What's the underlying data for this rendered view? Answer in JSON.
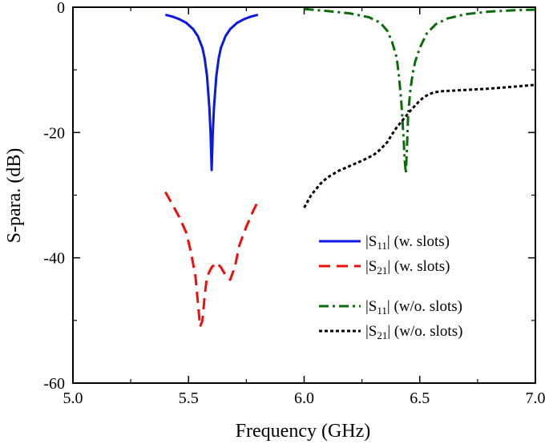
{
  "chart_data": {
    "type": "line",
    "title": "",
    "xlabel": "Frequency (GHz)",
    "ylabel": "S-para. (dB)",
    "xlim": [
      5.0,
      7.0
    ],
    "ylim": [
      -60,
      0
    ],
    "xticks": [
      5.0,
      5.5,
      6.0,
      6.5,
      7.0
    ],
    "xtick_labels": [
      "5.0",
      "5.5",
      "6.0",
      "6.5",
      "7.0"
    ],
    "yticks": [
      0,
      -20,
      -40,
      -60
    ],
    "ytick_labels": [
      "0",
      "-20",
      "-40",
      "-60"
    ],
    "grid": false,
    "legend_position": "bottom-right",
    "series": [
      {
        "name": "|S11| (w. slots)",
        "legend": {
          "prefix": "|S",
          "sub": "11",
          "suffix": "| (w. slots)"
        },
        "color": "#0a18e6",
        "dash": "solid",
        "x": [
          5.4,
          5.43,
          5.46,
          5.49,
          5.52,
          5.54,
          5.56,
          5.57,
          5.58,
          5.59,
          5.595,
          5.6,
          5.605,
          5.61,
          5.62,
          5.63,
          5.64,
          5.66,
          5.68,
          5.71,
          5.74,
          5.77,
          5.8
        ],
        "y": [
          -1.2,
          -1.5,
          -1.9,
          -2.5,
          -3.5,
          -4.6,
          -6.5,
          -8.2,
          -11.0,
          -16.0,
          -20.0,
          -26.0,
          -20.0,
          -16.0,
          -11.0,
          -8.2,
          -6.5,
          -4.6,
          -3.5,
          -2.5,
          -1.9,
          -1.5,
          -1.2
        ]
      },
      {
        "name": "|S21| (w. slots)",
        "legend": {
          "prefix": "|S",
          "sub": "21",
          "suffix": "| (w. slots)"
        },
        "color": "#f20d0d",
        "dash": "dashed",
        "x": [
          5.4,
          5.43,
          5.46,
          5.49,
          5.51,
          5.53,
          5.54,
          5.55,
          5.56,
          5.57,
          5.58,
          5.6,
          5.62,
          5.64,
          5.66,
          5.68,
          5.7,
          5.72,
          5.75,
          5.78,
          5.8
        ],
        "y": [
          -29.5,
          -31.5,
          -33.5,
          -36.0,
          -39.0,
          -43.0,
          -47.0,
          -51.0,
          -50.0,
          -46.0,
          -43.0,
          -41.5,
          -40.8,
          -41.5,
          -42.8,
          -43.5,
          -41.5,
          -38.0,
          -35.0,
          -32.5,
          -31.0
        ]
      },
      {
        "name": "|S11| (w/o. slots)",
        "legend": {
          "prefix": "|S",
          "sub": "11",
          "suffix": "| (w/o. slots)"
        },
        "color": "#0b6b0b",
        "dash": "dash-dot",
        "x": [
          6.0,
          6.1,
          6.2,
          6.28,
          6.33,
          6.36,
          6.38,
          6.4,
          6.41,
          6.42,
          6.43,
          6.435,
          6.44,
          6.445,
          6.45,
          6.46,
          6.47,
          6.48,
          6.5,
          6.53,
          6.57,
          6.62,
          6.7,
          6.8,
          6.9,
          7.0
        ],
        "y": [
          -0.3,
          -0.6,
          -1.0,
          -1.6,
          -2.5,
          -3.8,
          -5.5,
          -8.0,
          -11.0,
          -15.0,
          -21.0,
          -24.5,
          -26.5,
          -22.0,
          -17.0,
          -13.0,
          -10.5,
          -8.7,
          -6.5,
          -4.2,
          -2.7,
          -1.8,
          -1.1,
          -0.7,
          -0.5,
          -0.4
        ]
      },
      {
        "name": "|S21| (w/o. slots)",
        "legend": {
          "prefix": "|S",
          "sub": "21",
          "suffix": "| (w/o. slots)"
        },
        "color": "#000000",
        "dash": "dotted",
        "x": [
          6.0,
          6.03,
          6.07,
          6.1,
          6.15,
          6.2,
          6.25,
          6.3,
          6.33,
          6.36,
          6.38,
          6.4,
          6.42,
          6.44,
          6.46,
          6.48,
          6.5,
          6.52,
          6.54,
          6.56,
          6.6,
          6.65,
          6.7,
          6.8,
          6.9,
          7.0
        ],
        "y": [
          -32.0,
          -30.0,
          -28.2,
          -27.2,
          -26.1,
          -25.3,
          -24.5,
          -23.6,
          -22.7,
          -21.5,
          -20.3,
          -19.2,
          -18.3,
          -17.4,
          -16.5,
          -15.7,
          -14.9,
          -14.3,
          -13.9,
          -13.6,
          -13.4,
          -13.3,
          -13.2,
          -13.0,
          -12.7,
          -12.4
        ]
      }
    ]
  }
}
